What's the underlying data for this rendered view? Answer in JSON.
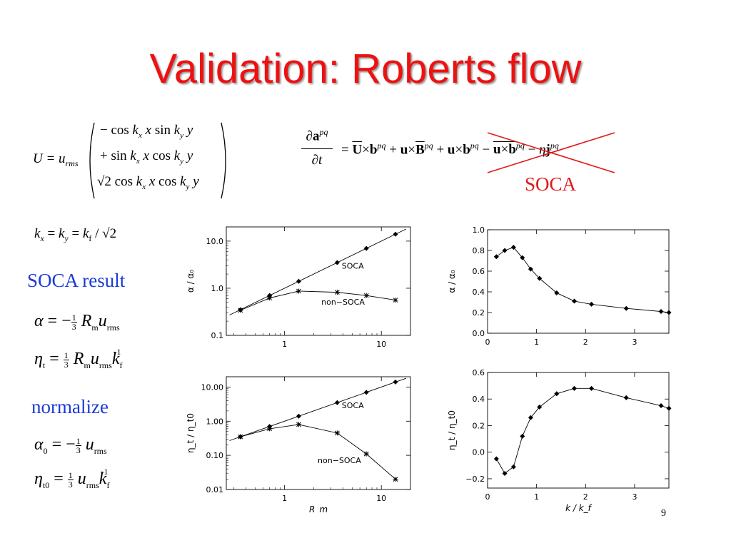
{
  "slide": {
    "title": "Validation: Roberts flow",
    "page_number": "9"
  },
  "equations": {
    "velocity_lhs": "U = u",
    "velocity_lhs_sub": "rms",
    "velocity_rows": [
      "−cos k_x x sin k_y y",
      "+sin k_x x cos k_y y",
      "√2 cos k_x x cos k_y y"
    ],
    "induction": "∂a^pq/∂t = U×b^pq + u×B^pq + u×b^pq − (u×b)^pq − ηj^pq",
    "k_relation": "k_x = k_y = k_f / √2",
    "soca_alpha": "α = −(1/3) R_m u_rms",
    "soca_eta": "η_t = (1/3) R_m u_rms k_f^-1",
    "norm_alpha": "α_0 = −(1/3) u_rms",
    "norm_eta": "η_t0 = (1/3) u_rms k_f^-1"
  },
  "labels": {
    "soca_cross": "SOCA",
    "soca_result": "SOCA result",
    "normalize": "normalize"
  },
  "chart_data": [
    {
      "type": "line",
      "xscale": "log",
      "yscale": "log",
      "xlabel": "",
      "ylabel": "α / α₀",
      "xlim": [
        0.25,
        20
      ],
      "ylim": [
        0.1,
        20
      ],
      "xticks": [
        "1",
        "10"
      ],
      "yticks": [
        "0.1",
        "1.0",
        "10.0"
      ],
      "series": [
        {
          "name": "SOCA",
          "marker": "diamond",
          "x": [
            0.35,
            0.7,
            1.4,
            3.5,
            7,
            14
          ],
          "y": [
            0.35,
            0.7,
            1.4,
            3.5,
            7,
            14
          ]
        },
        {
          "name": "non−SOCA",
          "marker": "star",
          "x": [
            0.35,
            0.7,
            1.4,
            3.5,
            7,
            14
          ],
          "y": [
            0.34,
            0.62,
            0.87,
            0.82,
            0.7,
            0.56
          ]
        }
      ]
    },
    {
      "type": "line",
      "xscale": "linear",
      "yscale": "linear",
      "xlabel": "",
      "ylabel": "α / α₀",
      "xlim": [
        0,
        3.7
      ],
      "ylim": [
        0,
        1
      ],
      "xticks": [
        "0",
        "1",
        "2",
        "3"
      ],
      "yticks": [
        "0.0",
        "0.2",
        "0.4",
        "0.6",
        "0.8",
        "1.0"
      ],
      "series": [
        {
          "name": "",
          "marker": "diamond",
          "x": [
            0.18,
            0.35,
            0.53,
            0.71,
            0.88,
            1.06,
            1.41,
            1.77,
            2.12,
            2.83,
            3.54,
            3.7
          ],
          "y": [
            0.74,
            0.8,
            0.83,
            0.73,
            0.62,
            0.53,
            0.39,
            0.31,
            0.28,
            0.24,
            0.21,
            0.2
          ]
        }
      ]
    },
    {
      "type": "line",
      "xscale": "log",
      "yscale": "log",
      "xlabel": "R_m",
      "ylabel": "η_t / η_t0",
      "xlim": [
        0.25,
        20
      ],
      "ylim": [
        0.01,
        20
      ],
      "xticks": [
        "1",
        "10"
      ],
      "yticks": [
        "0.01",
        "0.10",
        "1.00",
        "10.00"
      ],
      "series": [
        {
          "name": "SOCA",
          "marker": "diamond",
          "x": [
            0.35,
            0.7,
            1.4,
            3.5,
            7,
            14
          ],
          "y": [
            0.35,
            0.7,
            1.4,
            3.5,
            7,
            14
          ]
        },
        {
          "name": "non−SOCA",
          "marker": "star",
          "x": [
            0.35,
            0.7,
            1.4,
            3.5,
            7,
            14
          ],
          "y": [
            0.35,
            0.6,
            0.8,
            0.45,
            0.11,
            0.02
          ]
        }
      ]
    },
    {
      "type": "line",
      "xscale": "linear",
      "yscale": "linear",
      "xlabel": "k / k_f",
      "ylabel": "η_t / η_t0",
      "xlim": [
        0,
        3.7
      ],
      "ylim": [
        -0.27,
        0.6
      ],
      "xticks": [
        "0",
        "1",
        "2",
        "3"
      ],
      "yticks": [
        "−0.2",
        "0.0",
        "0.2",
        "0.4",
        "0.6"
      ],
      "series": [
        {
          "name": "",
          "marker": "diamond",
          "x": [
            0.18,
            0.35,
            0.53,
            0.71,
            0.88,
            1.06,
            1.41,
            1.77,
            2.12,
            2.83,
            3.54,
            3.7
          ],
          "y": [
            -0.05,
            -0.16,
            -0.11,
            0.12,
            0.26,
            0.34,
            0.44,
            0.48,
            0.48,
            0.41,
            0.35,
            0.33
          ]
        }
      ]
    }
  ]
}
